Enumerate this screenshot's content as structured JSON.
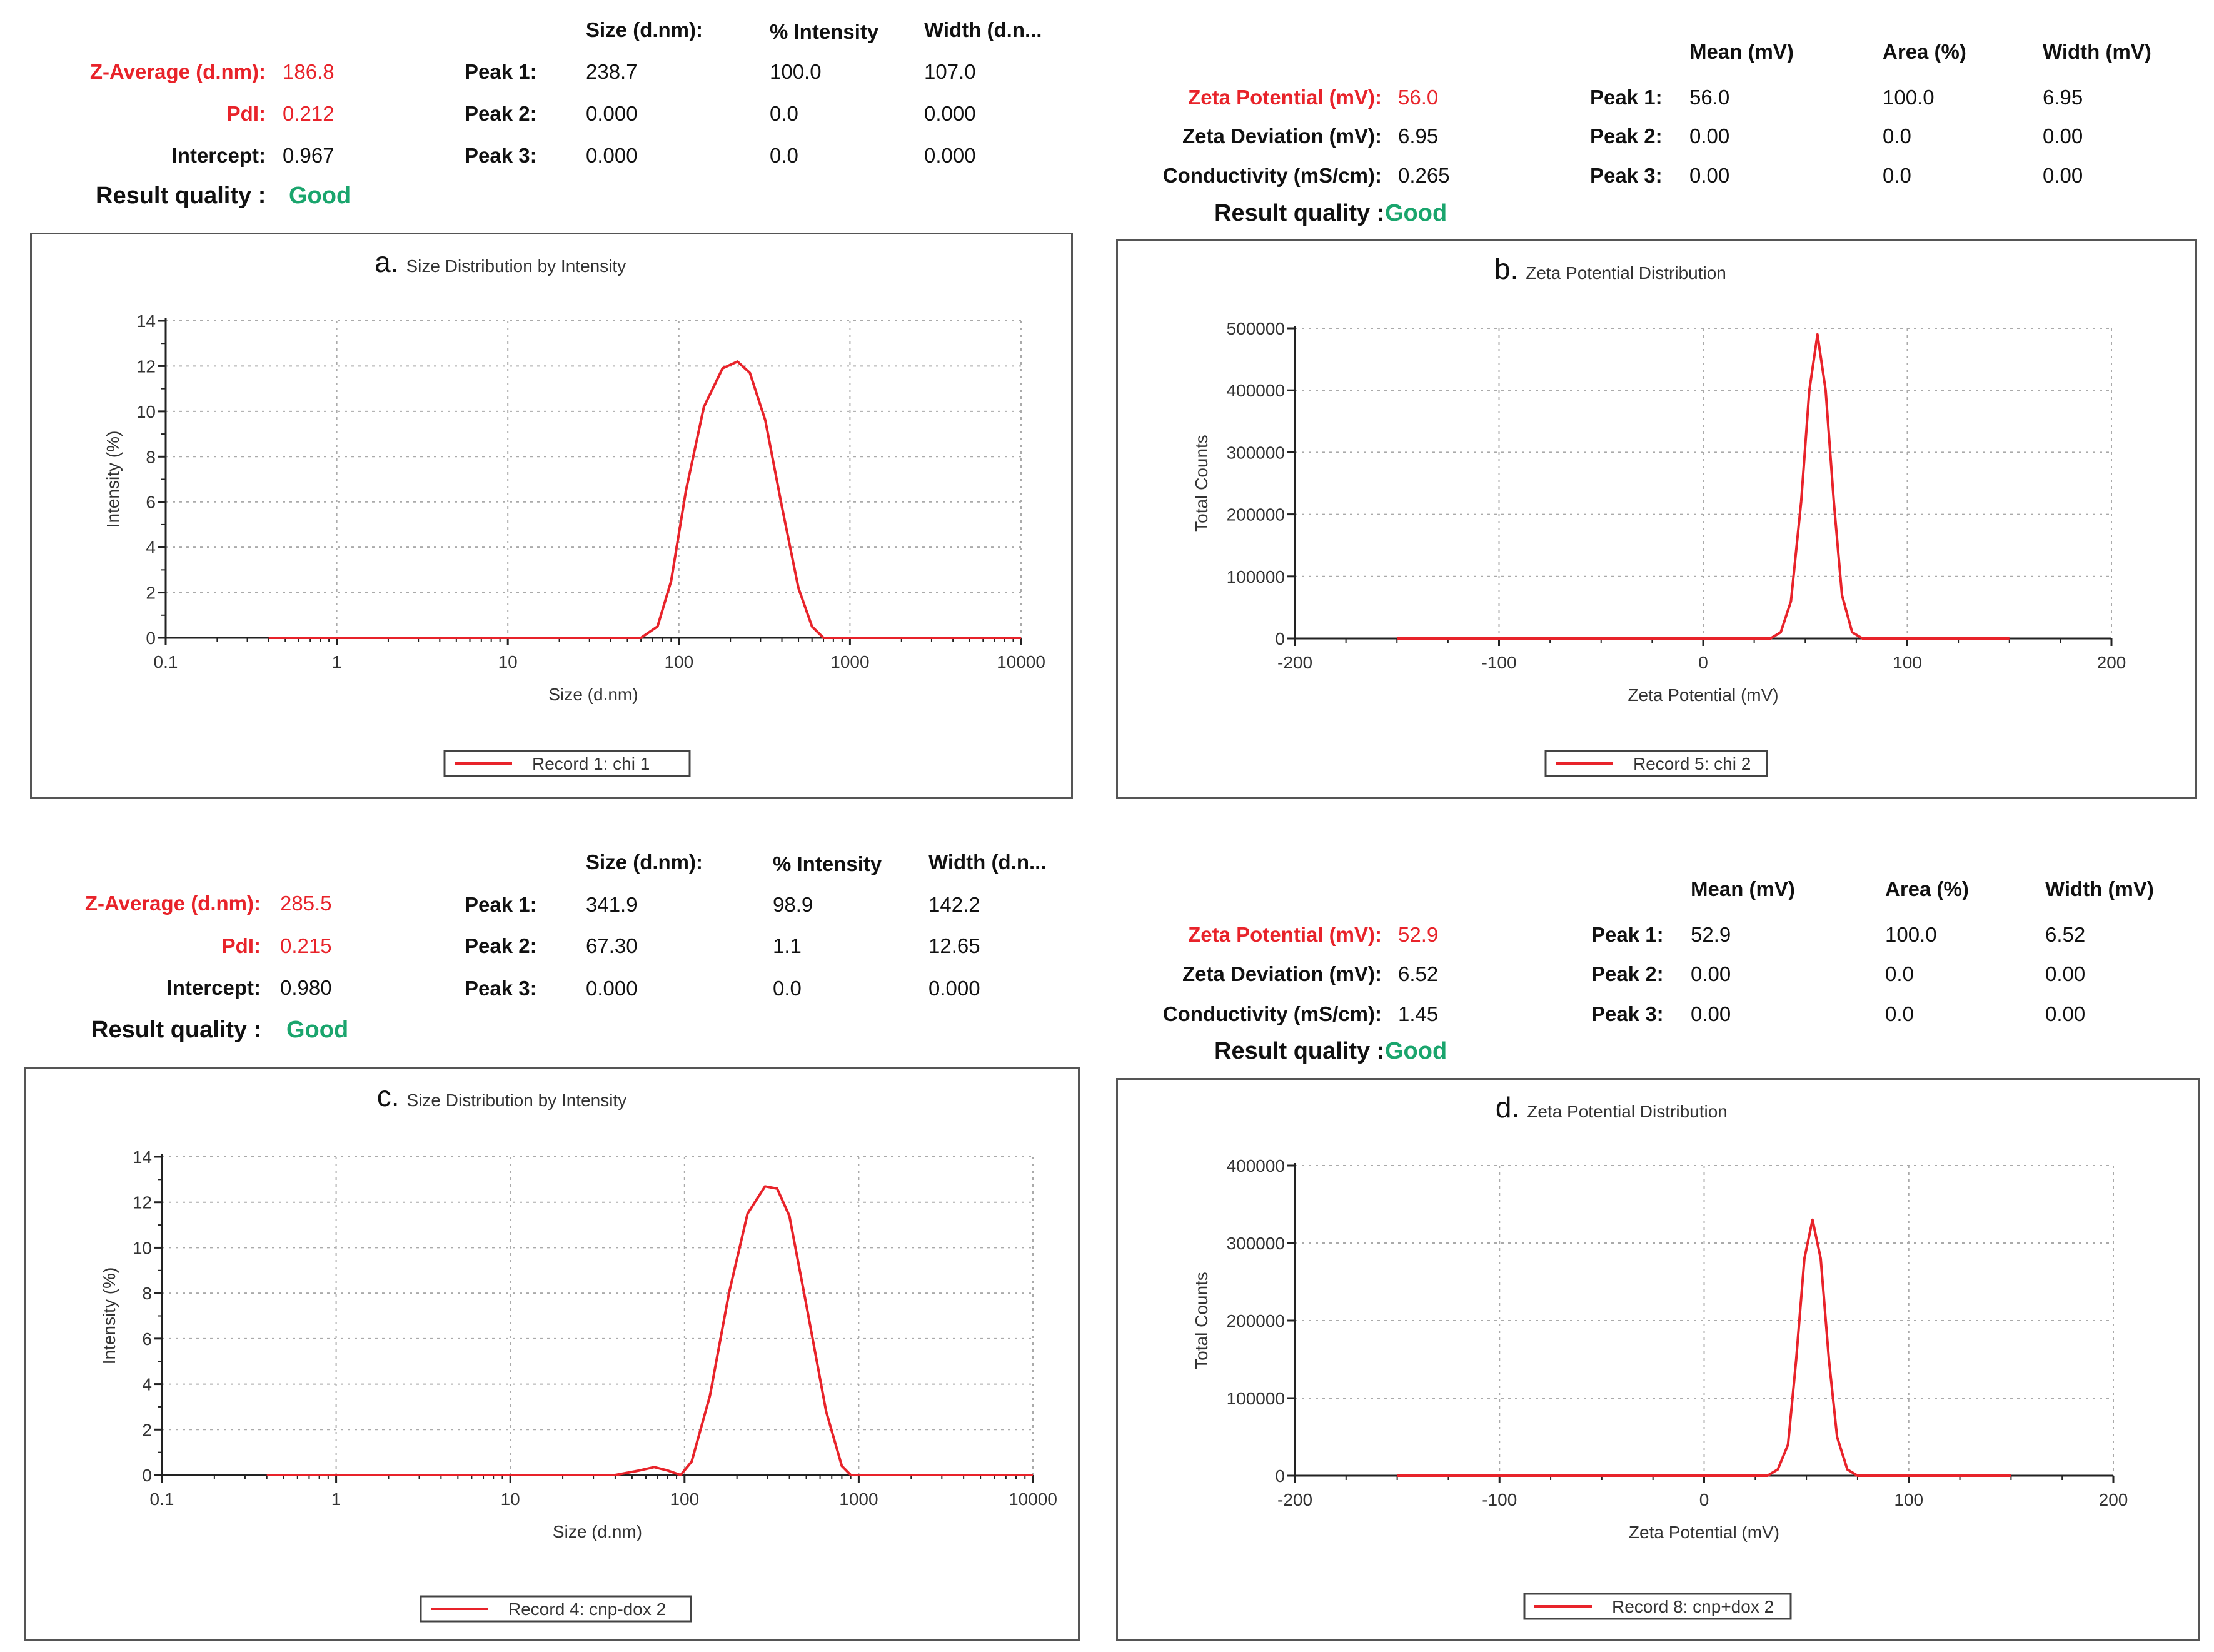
{
  "panels": [
    {
      "type": "size",
      "summary": {
        "zavg_label": "Z-Average (d.nm):",
        "zavg": "186.8",
        "pdi_label": "PdI:",
        "pdi": "0.212",
        "intercept_label": "Intercept:",
        "intercept": "0.967",
        "quality_label": "Result quality :",
        "quality": "Good"
      },
      "peaks": {
        "headers": [
          "Size (d.nm):",
          "% Intensity",
          "Width (d.n..."
        ],
        "rows": [
          {
            "label": "Peak 1:",
            "values": [
              "238.7",
              "100.0",
              "107.0"
            ]
          },
          {
            "label": "Peak 2:",
            "values": [
              "0.000",
              "0.0",
              "0.000"
            ]
          },
          {
            "label": "Peak 3:",
            "values": [
              "0.000",
              "0.0",
              "0.000"
            ]
          }
        ]
      },
      "letter": "a.",
      "chart_data": {
        "type": "line",
        "title": "Size Distribution by Intensity",
        "xlabel": "Size (d.nm)",
        "ylabel": "Intensity (%)",
        "xscale": "log",
        "xlim": [
          0.1,
          10000
        ],
        "ylim": [
          0,
          14
        ],
        "xticks": [
          "0.1",
          "1",
          "10",
          "100",
          "1000",
          "10000"
        ],
        "yticks": [
          "0",
          "2",
          "4",
          "6",
          "8",
          "10",
          "12",
          "14"
        ],
        "grid": true,
        "legend": "bottom-center",
        "series": [
          {
            "name": "Record 1: chi 1",
            "color": "#e8232a",
            "x": [
              0.4,
              60,
              75,
              90,
              110,
              140,
              180,
              220,
              260,
              320,
              400,
              500,
              600,
              700,
              10000
            ],
            "y": [
              0,
              0,
              0.5,
              2.5,
              6.5,
              10.2,
              11.9,
              12.2,
              11.7,
              9.6,
              5.8,
              2.2,
              0.5,
              0,
              0
            ]
          }
        ]
      }
    },
    {
      "type": "zeta",
      "summary": {
        "zp_label": "Zeta Potential (mV):",
        "zp": "56.0",
        "dev_label": "Zeta Deviation (mV):",
        "dev": "6.95",
        "cond_label": "Conductivity (mS/cm):",
        "cond": "0.265",
        "quality_label": "Result quality :",
        "quality": "Good"
      },
      "peaks": {
        "headers": [
          "Mean (mV)",
          "Area (%)",
          "Width (mV)"
        ],
        "rows": [
          {
            "label": "Peak 1:",
            "values": [
              "56.0",
              "100.0",
              "6.95"
            ]
          },
          {
            "label": "Peak 2:",
            "values": [
              "0.00",
              "0.0",
              "0.00"
            ]
          },
          {
            "label": "Peak 3:",
            "values": [
              "0.00",
              "0.0",
              "0.00"
            ]
          }
        ]
      },
      "letter": "b.",
      "chart_data": {
        "type": "line",
        "title": "Zeta Potential Distribution",
        "xlabel": "Zeta Potential (mV)",
        "ylabel": "Total Counts",
        "xlim": [
          -200,
          200
        ],
        "ylim": [
          0,
          500000
        ],
        "xticks": [
          "-200",
          "-100",
          "0",
          "100",
          "200"
        ],
        "yticks": [
          "0",
          "100000",
          "200000",
          "300000",
          "400000",
          "500000"
        ],
        "grid": true,
        "legend": "bottom-center",
        "series": [
          {
            "name": "Record 5: chi 2",
            "color": "#e8232a",
            "x": [
              -150,
              33,
              38,
              43,
              48,
              52,
              56,
              60,
              64,
              68,
              73,
              78,
              150
            ],
            "y": [
              0,
              0,
              10000,
              60000,
              220000,
              400000,
              490000,
              400000,
              220000,
              70000,
              10000,
              0,
              0
            ]
          }
        ]
      }
    },
    {
      "type": "size",
      "summary": {
        "zavg_label": "Z-Average (d.nm):",
        "zavg": "285.5",
        "pdi_label": "PdI:",
        "pdi": "0.215",
        "intercept_label": "Intercept:",
        "intercept": "0.980",
        "quality_label": "Result quality :",
        "quality": "Good"
      },
      "peaks": {
        "headers": [
          "Size (d.nm):",
          "% Intensity",
          "Width (d.n..."
        ],
        "rows": [
          {
            "label": "Peak 1:",
            "values": [
              "341.9",
              "98.9",
              "142.2"
            ]
          },
          {
            "label": "Peak 2:",
            "values": [
              "67.30",
              "1.1",
              "12.65"
            ]
          },
          {
            "label": "Peak 3:",
            "values": [
              "0.000",
              "0.0",
              "0.000"
            ]
          }
        ]
      },
      "letter": "c.",
      "chart_data": {
        "type": "line",
        "title": "Size Distribution by Intensity",
        "xlabel": "Size (d.nm)",
        "ylabel": "Intensity (%)",
        "xscale": "log",
        "xlim": [
          0.1,
          10000
        ],
        "ylim": [
          0,
          14
        ],
        "xticks": [
          "0.1",
          "1",
          "10",
          "100",
          "1000",
          "10000"
        ],
        "yticks": [
          "0",
          "2",
          "4",
          "6",
          "8",
          "10",
          "12",
          "14"
        ],
        "grid": true,
        "legend": "bottom-center",
        "series": [
          {
            "name": "Record 4: cnp-dox 2",
            "color": "#e8232a",
            "x": [
              0.4,
              40,
              55,
              67,
              80,
              95,
              110,
              140,
              180,
              230,
              290,
              340,
              400,
              500,
              650,
              800,
              900,
              10000
            ],
            "y": [
              0,
              0,
              0.2,
              0.35,
              0.2,
              0,
              0.6,
              3.5,
              8.0,
              11.5,
              12.7,
              12.6,
              11.4,
              7.5,
              2.8,
              0.4,
              0,
              0
            ]
          }
        ]
      }
    },
    {
      "type": "zeta",
      "summary": {
        "zp_label": "Zeta Potential (mV):",
        "zp": "52.9",
        "dev_label": "Zeta Deviation (mV):",
        "dev": "6.52",
        "cond_label": "Conductivity (mS/cm):",
        "cond": "1.45",
        "quality_label": "Result quality :",
        "quality": "Good"
      },
      "peaks": {
        "headers": [
          "Mean (mV)",
          "Area (%)",
          "Width (mV)"
        ],
        "rows": [
          {
            "label": "Peak 1:",
            "values": [
              "52.9",
              "100.0",
              "6.52"
            ]
          },
          {
            "label": "Peak 2:",
            "values": [
              "0.00",
              "0.0",
              "0.00"
            ]
          },
          {
            "label": "Peak 3:",
            "values": [
              "0.00",
              "0.0",
              "0.00"
            ]
          }
        ]
      },
      "letter": "d.",
      "chart_data": {
        "type": "line",
        "title": "Zeta Potential Distribution",
        "xlabel": "Zeta Potential (mV)",
        "ylabel": "Total Counts",
        "xlim": [
          -200,
          200
        ],
        "ylim": [
          0,
          400000
        ],
        "xticks": [
          "-200",
          "-100",
          "0",
          "100",
          "200"
        ],
        "yticks": [
          "0",
          "100000",
          "200000",
          "300000",
          "400000"
        ],
        "grid": true,
        "legend": "bottom-center",
        "series": [
          {
            "name": "Record 8: cnp+dox 2",
            "color": "#e8232a",
            "x": [
              -150,
              31,
              36,
              41,
              45,
              49,
              53,
              57,
              61,
              65,
              70,
              75,
              150
            ],
            "y": [
              0,
              0,
              8000,
              40000,
              150000,
              280000,
              330000,
              280000,
              150000,
              50000,
              8000,
              0,
              0
            ]
          }
        ]
      }
    }
  ]
}
